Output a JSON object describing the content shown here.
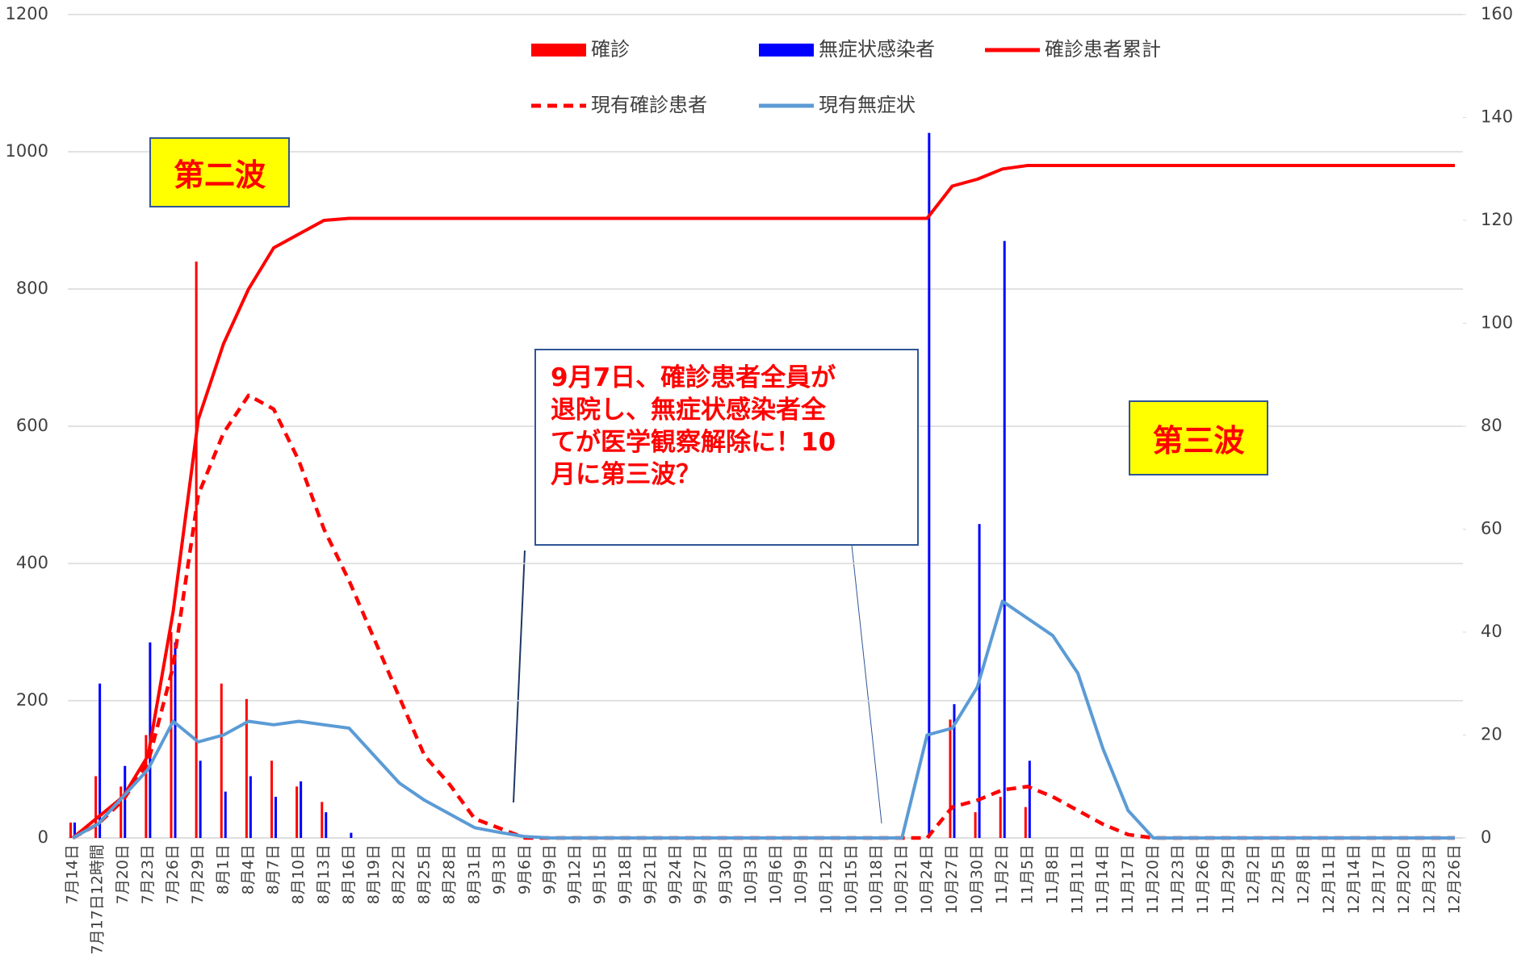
{
  "chart_data": {
    "type": "combo",
    "categories": [
      "7月14日",
      "7月17日12時間",
      "7月20日",
      "7月23日",
      "7月26日",
      "7月29日",
      "8月1日",
      "8月4日",
      "8月7日",
      "8月10日",
      "8月13日",
      "8月16日",
      "8月19日",
      "8月22日",
      "8月25日",
      "8月28日",
      "8月31日",
      "9月3日",
      "9月6日",
      "9月9日",
      "9月12日",
      "9月15日",
      "9月18日",
      "9月21日",
      "9月24日",
      "9月27日",
      "9月30日",
      "10月3日",
      "10月6日",
      "10月9日",
      "10月12日",
      "10月15日",
      "10月18日",
      "10月21日",
      "10月24日",
      "10月27日",
      "10月30日",
      "11月2日",
      "11月5日",
      "11月8日",
      "11月11日",
      "11月14日",
      "11月17日",
      "11月20日",
      "11月23日",
      "11月26日",
      "11月29日",
      "12月2日",
      "12月5日",
      "12月8日",
      "12月11日",
      "12月14日",
      "12月17日",
      "12月20日",
      "12月23日",
      "12月26日"
    ],
    "series": [
      {
        "name": "確診",
        "type": "bar",
        "axis": "y2",
        "color": "#ff0000",
        "values": [
          3,
          12,
          10,
          20,
          40,
          112,
          30,
          27,
          15,
          10,
          7,
          0,
          0,
          0,
          0,
          0,
          0,
          0,
          0,
          0,
          0,
          0,
          0,
          0,
          0,
          0,
          0,
          0,
          0,
          0,
          0,
          0,
          0,
          0,
          0,
          23,
          5,
          8,
          6,
          0,
          0,
          0,
          0,
          0,
          0,
          0,
          0,
          0,
          0,
          0,
          0,
          0,
          0,
          0,
          0,
          0
        ]
      },
      {
        "name": "無症状感染者",
        "type": "bar",
        "axis": "y2",
        "color": "#0000ff",
        "values": [
          3,
          30,
          14,
          38,
          38,
          15,
          9,
          12,
          8,
          11,
          5,
          1,
          0,
          0,
          0,
          0,
          0,
          0,
          0,
          0,
          0,
          0,
          0,
          0,
          0,
          0,
          0,
          0,
          0,
          0,
          0,
          0,
          0,
          0,
          137,
          26,
          61,
          116,
          15,
          0,
          0,
          0,
          0,
          0,
          0,
          0,
          0,
          0,
          0,
          0,
          0,
          0,
          0,
          0,
          0,
          0
        ]
      },
      {
        "name": "確診患者累計",
        "type": "line",
        "color": "#ff0000",
        "dashed": false,
        "values": [
          0,
          30,
          60,
          120,
          330,
          610,
          720,
          800,
          860,
          880,
          900,
          903,
          903,
          903,
          903,
          903,
          903,
          903,
          903,
          903,
          903,
          903,
          903,
          903,
          903,
          903,
          903,
          903,
          903,
          903,
          903,
          903,
          903,
          903,
          903,
          950,
          960,
          975,
          980,
          980,
          980,
          980,
          980,
          980,
          980,
          980,
          980,
          980,
          980,
          980,
          980,
          980,
          980,
          980,
          980,
          980
        ]
      },
      {
        "name": "現有確診患者",
        "type": "line",
        "color": "#ff0000",
        "dashed": true,
        "values": [
          0,
          20,
          55,
          110,
          250,
          500,
          590,
          645,
          625,
          550,
          450,
          375,
          290,
          205,
          120,
          78,
          28,
          14,
          0,
          0,
          0,
          0,
          0,
          0,
          0,
          0,
          0,
          0,
          0,
          0,
          0,
          0,
          0,
          0,
          0,
          45,
          55,
          70,
          75,
          60,
          40,
          20,
          5,
          0,
          0,
          0,
          0,
          0,
          0,
          0,
          0,
          0,
          0,
          0,
          0,
          0
        ]
      },
      {
        "name": "現有無症状",
        "type": "line",
        "color": "#5b9bd5",
        "dashed": false,
        "values": [
          0,
          20,
          60,
          100,
          170,
          140,
          150,
          170,
          165,
          170,
          165,
          160,
          120,
          80,
          55,
          35,
          15,
          8,
          2,
          0,
          0,
          0,
          0,
          0,
          0,
          0,
          0,
          0,
          0,
          0,
          0,
          0,
          0,
          0,
          150,
          160,
          220,
          345,
          320,
          295,
          240,
          130,
          40,
          0,
          0,
          0,
          0,
          0,
          0,
          0,
          0,
          0,
          0,
          0,
          0,
          0
        ]
      }
    ],
    "ylim": [
      0,
      1200
    ],
    "yticks": [
      0,
      200,
      400,
      600,
      800,
      1000,
      1200
    ],
    "y2lim": [
      0,
      160
    ],
    "y2ticks": [
      0,
      20,
      40,
      60,
      80,
      100,
      120,
      140,
      160
    ],
    "grid": true,
    "annotations": {
      "second_wave": "第二波",
      "third_wave": "第三波",
      "callout": [
        "9月7日、確診患者全員が",
        "退院し、無症状感染者全",
        "てが医学観察解除に！10",
        "月に第三波？"
      ]
    }
  }
}
